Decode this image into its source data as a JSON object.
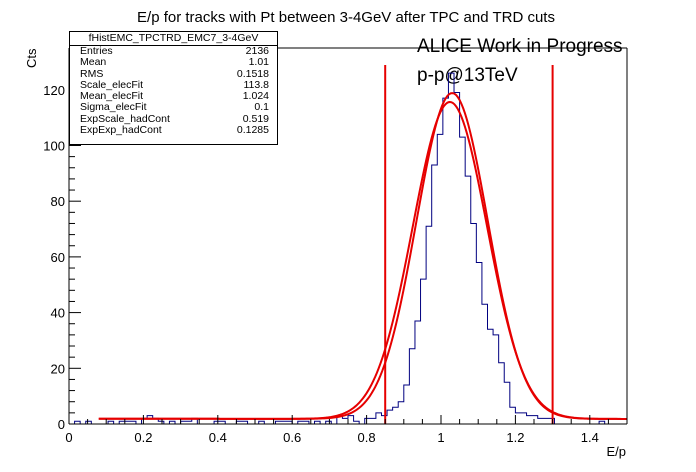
{
  "chart_data": {
    "type": "histogram",
    "title": "E/p for tracks with Pt between 3-4GeV after TPC and TRD cuts",
    "xlabel": "E/p",
    "ylabel": "Cts",
    "xlim": [
      0,
      1.5
    ],
    "ylim": [
      0,
      135
    ],
    "x_ticks": [
      0,
      0.2,
      0.4,
      0.6,
      0.8,
      1,
      1.2,
      1.4
    ],
    "y_ticks": [
      0,
      20,
      40,
      60,
      80,
      100,
      120
    ],
    "bin_width": 0.015,
    "histogram_y_approx": [
      0,
      1,
      0,
      1,
      0,
      0,
      0,
      1,
      0,
      1,
      1,
      1,
      0,
      2,
      3,
      2,
      1,
      0,
      1,
      0,
      1,
      1,
      2,
      0,
      0,
      0,
      1,
      1,
      0,
      0,
      1,
      1,
      0,
      0,
      1,
      0,
      0,
      1,
      1,
      1,
      0,
      1,
      1,
      0,
      1,
      0,
      1,
      0,
      3,
      2,
      3,
      1,
      0,
      2,
      2,
      4,
      3,
      5,
      6,
      8,
      14,
      27,
      37,
      52,
      71,
      93,
      104,
      117,
      126,
      119,
      103,
      89,
      72,
      58,
      43,
      34,
      32,
      22,
      15,
      6,
      4,
      4,
      3,
      3,
      2,
      2,
      2,
      0,
      0,
      0,
      0,
      0,
      0,
      0,
      0,
      1,
      0,
      0,
      0,
      0
    ],
    "annotations": [
      "ALICE Work in Progress",
      "p-p@13TeV"
    ],
    "cut_lines_x": [
      0.85,
      1.3
    ],
    "fit_curves": [
      {
        "kind": "gaussian_plus_exponential",
        "scale": 113.8,
        "mean": 1.024,
        "sigma": 0.1,
        "bg_scale": 0.519,
        "bg_exp": 0.1285
      },
      {
        "kind": "gaussian_plus_exponential_alt",
        "scale": 117.0,
        "mean": 1.03,
        "sigma": 0.096,
        "bg_scale": 0.519,
        "bg_exp": 0.1285
      }
    ],
    "colors": {
      "histogram": "#000080",
      "fit": "#e60000",
      "cut": "#e60000",
      "axis": "#000000"
    }
  },
  "stats_box": {
    "title": "fHistEMC_TPCTRD_EMC7_3-4GeV",
    "rows": [
      {
        "label": "Entries",
        "value": "2136"
      },
      {
        "label": "Mean",
        "value": "1.01"
      },
      {
        "label": "RMS",
        "value": "0.1518"
      },
      {
        "label": "Scale_elecFit",
        "value": "113.8"
      },
      {
        "label": "Mean_elecFit",
        "value": "1.024"
      },
      {
        "label": "Sigma_elecFit",
        "value": "0.1"
      },
      {
        "label": "ExpScale_hadCont",
        "value": "0.519"
      },
      {
        "label": "ExpExp_hadCont",
        "value": "0.1285"
      }
    ]
  }
}
